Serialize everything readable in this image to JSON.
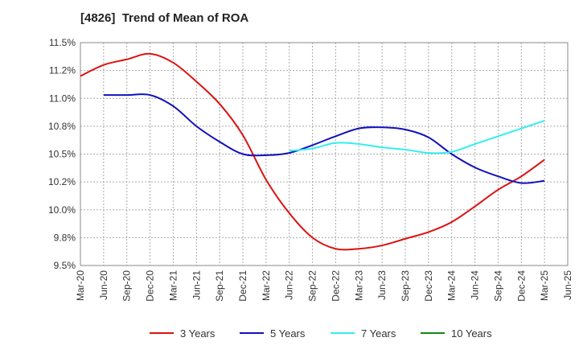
{
  "chart_data": {
    "type": "line",
    "title": "[4826]  Trend of Mean of ROA",
    "xlabel": "",
    "ylabel": "",
    "categories": [
      "Mar-20",
      "Jun-20",
      "Sep-20",
      "Dec-20",
      "Mar-21",
      "Jun-21",
      "Sep-21",
      "Dec-21",
      "Mar-22",
      "Jun-22",
      "Sep-22",
      "Dec-22",
      "Mar-23",
      "Jun-23",
      "Sep-23",
      "Dec-23",
      "Mar-24",
      "Jun-24",
      "Sep-24",
      "Dec-24",
      "Mar-25",
      "Jun-25"
    ],
    "ylim": [
      9.5,
      11.5
    ],
    "yticks": [
      "9.5%",
      "9.8%",
      "10.0%",
      "10.2%",
      "10.5%",
      "10.8%",
      "11.0%",
      "11.2%",
      "11.5%"
    ],
    "ytick_values": [
      9.5,
      9.75,
      10.0,
      10.25,
      10.5,
      10.75,
      11.0,
      11.25,
      11.5
    ],
    "grid": true,
    "legend_position": "bottom",
    "series": [
      {
        "name": "3 Years",
        "color": "#dd1111",
        "values": [
          11.2,
          11.3,
          11.35,
          11.4,
          11.32,
          11.15,
          10.95,
          10.67,
          10.27,
          9.97,
          9.75,
          9.65,
          9.65,
          9.68,
          9.74,
          9.8,
          9.89,
          10.03,
          10.18,
          10.3,
          10.45,
          null
        ]
      },
      {
        "name": "5 Years",
        "color": "#1111bb",
        "values": [
          null,
          11.03,
          11.03,
          11.03,
          10.93,
          10.75,
          10.61,
          10.5,
          10.49,
          10.51,
          10.58,
          10.66,
          10.73,
          10.74,
          10.72,
          10.65,
          10.5,
          10.38,
          10.3,
          10.24,
          10.26,
          null
        ]
      },
      {
        "name": "7 Years",
        "color": "#33eeee",
        "values": [
          null,
          null,
          null,
          null,
          null,
          null,
          null,
          null,
          null,
          10.53,
          10.55,
          10.6,
          10.59,
          10.56,
          10.54,
          10.51,
          10.52,
          10.59,
          10.66,
          10.73,
          10.8,
          null
        ]
      },
      {
        "name": "10 Years",
        "color": "#118811",
        "values": [
          null,
          null,
          null,
          null,
          null,
          null,
          null,
          null,
          null,
          null,
          null,
          null,
          null,
          null,
          null,
          null,
          null,
          null,
          null,
          null,
          null,
          null
        ]
      }
    ]
  }
}
